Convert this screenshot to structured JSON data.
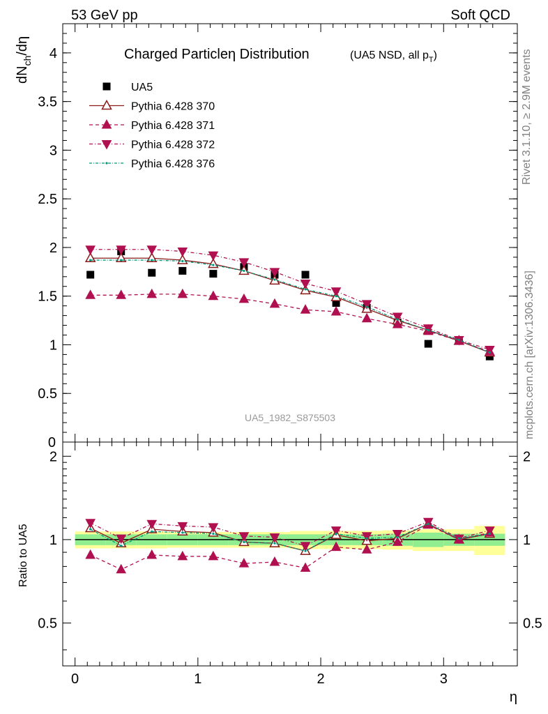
{
  "header": {
    "left": "53 GeV pp",
    "right": "Soft QCD"
  },
  "side_text": {
    "rivet": "Rivet 3.1.10, ≥ 2.9M events",
    "mcplots": "mcplots.cern.ch [arXiv:1306.3436]"
  },
  "colors": {
    "data": "#000000",
    "p370": "#8b1a1a",
    "p371": "#b0104f",
    "p372": "#b0104f",
    "p376": "#009a7a",
    "band_inner": "#90ee90",
    "band_outer": "#ffff99"
  },
  "chart_data": [
    {
      "type": "scatter",
      "title": "Charged Particleη Distribution",
      "subtitle": "(UA5 NSD, all p",
      "subtitle_sub": "T",
      "subtitle_close": ")",
      "ylabel_main": "dN",
      "ylabel_sub": "ch",
      "ylabel_rest": "/dη",
      "watermark": "UA5_1982_S875503",
      "xlim": [
        -0.1,
        3.6
      ],
      "ylim": [
        0,
        4.3
      ],
      "yticks": [
        "0.5",
        "1",
        "1.5",
        "2",
        "2.5",
        "3",
        "3.5",
        "4"
      ],
      "ytick_values": [
        0.5,
        1,
        1.5,
        2,
        2.5,
        3,
        3.5,
        4
      ],
      "ytick_zero": "0",
      "x": [
        0.125,
        0.375,
        0.625,
        0.875,
        1.125,
        1.375,
        1.625,
        1.875,
        2.125,
        2.375,
        2.625,
        2.875,
        3.125,
        3.375
      ],
      "series": [
        {
          "name": "UA5",
          "style": "data",
          "values": [
            1.72,
            1.96,
            1.74,
            1.76,
            1.73,
            1.8,
            1.72,
            1.72,
            1.43,
            1.38,
            1.23,
            1.01,
            1.04,
            0.88
          ]
        },
        {
          "name": "Pythia 6.428 370",
          "style": "p370",
          "values": [
            1.89,
            1.89,
            1.89,
            1.87,
            1.83,
            1.76,
            1.66,
            1.56,
            1.49,
            1.37,
            1.25,
            1.15,
            1.04,
            0.92
          ]
        },
        {
          "name": "Pythia 6.428 371",
          "style": "p371",
          "values": [
            1.51,
            1.51,
            1.52,
            1.52,
            1.5,
            1.47,
            1.42,
            1.36,
            1.34,
            1.27,
            1.21,
            1.14,
            1.04,
            0.93
          ]
        },
        {
          "name": "Pythia 6.428 372",
          "style": "p372",
          "values": [
            1.98,
            1.98,
            1.98,
            1.96,
            1.92,
            1.85,
            1.75,
            1.63,
            1.55,
            1.42,
            1.29,
            1.17,
            1.05,
            0.95
          ]
        },
        {
          "name": "Pythia 6.428 376",
          "style": "p376",
          "values": [
            1.87,
            1.87,
            1.87,
            1.86,
            1.82,
            1.76,
            1.67,
            1.57,
            1.5,
            1.39,
            1.26,
            1.15,
            1.05,
            0.92
          ]
        }
      ]
    },
    {
      "type": "scatter",
      "ylabel": "Ratio to UA5",
      "xlabel": "η",
      "xlim": [
        -0.1,
        3.6
      ],
      "ylim": [
        0.35,
        2.25
      ],
      "xticks": [
        "0",
        "1",
        "2",
        "3"
      ],
      "xtick_values": [
        0,
        1,
        2,
        3
      ],
      "yticks": [
        "0.5",
        "1",
        "2"
      ],
      "ytick_values": [
        0.5,
        1,
        2
      ],
      "x": [
        0.125,
        0.375,
        0.625,
        0.875,
        1.125,
        1.375,
        1.625,
        1.875,
        2.125,
        2.375,
        2.625,
        2.875,
        3.125,
        3.375
      ],
      "band_inner": [
        0.045,
        0.045,
        0.045,
        0.045,
        0.045,
        0.045,
        0.045,
        0.045,
        0.045,
        0.045,
        0.05,
        0.06,
        0.05,
        0.05
      ],
      "band_outer": [
        0.07,
        0.07,
        0.07,
        0.065,
        0.065,
        0.065,
        0.065,
        0.075,
        0.075,
        0.075,
        0.08,
        0.09,
        0.09,
        0.12
      ],
      "series": [
        {
          "name": "Pythia 6.428 370",
          "style": "p370",
          "values": [
            1.1,
            0.97,
            1.09,
            1.07,
            1.06,
            0.98,
            0.97,
            0.91,
            1.04,
            0.99,
            1.01,
            1.14,
            1.0,
            1.05
          ]
        },
        {
          "name": "Pythia 6.428 371",
          "style": "p371",
          "values": [
            0.88,
            0.78,
            0.88,
            0.87,
            0.87,
            0.82,
            0.83,
            0.79,
            0.94,
            0.92,
            0.98,
            1.13,
            1.0,
            1.06
          ]
        },
        {
          "name": "Pythia 6.428 372",
          "style": "p372",
          "values": [
            1.15,
            1.01,
            1.14,
            1.12,
            1.11,
            1.03,
            1.02,
            0.95,
            1.08,
            1.03,
            1.05,
            1.16,
            1.01,
            1.08
          ]
        },
        {
          "name": "Pythia 6.428 376",
          "style": "p376",
          "values": [
            1.09,
            0.95,
            1.07,
            1.06,
            1.05,
            0.98,
            0.97,
            0.91,
            1.05,
            1.01,
            1.02,
            1.14,
            1.01,
            1.05
          ]
        }
      ]
    }
  ]
}
